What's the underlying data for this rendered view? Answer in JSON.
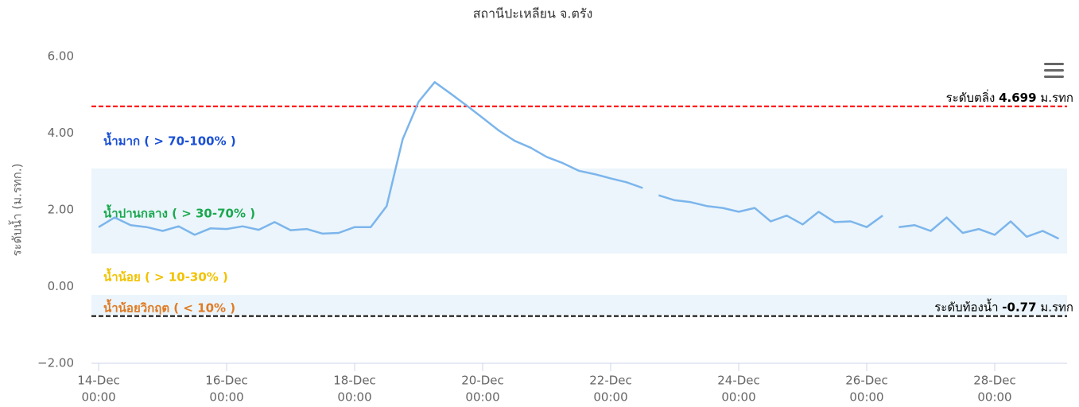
{
  "chart_data": {
    "type": "line",
    "title": "สถานีปะเหลียน จ.ตรัง",
    "y_label": "ระดับน้ำ (ม.รทก.)",
    "x": [
      "14-Dec 00:00",
      "14-Dec 06:00",
      "14-Dec 12:00",
      "14-Dec 18:00",
      "15-Dec 00:00",
      "15-Dec 06:00",
      "15-Dec 12:00",
      "15-Dec 18:00",
      "16-Dec 00:00",
      "16-Dec 06:00",
      "16-Dec 12:00",
      "16-Dec 18:00",
      "17-Dec 00:00",
      "17-Dec 06:00",
      "17-Dec 12:00",
      "17-Dec 18:00",
      "18-Dec 00:00",
      "18-Dec 06:00",
      "18-Dec 12:00",
      "18-Dec 18:00",
      "19-Dec 00:00",
      "19-Dec 06:00",
      "19-Dec 12:00",
      "19-Dec 18:00",
      "20-Dec 00:00",
      "20-Dec 06:00",
      "20-Dec 12:00",
      "20-Dec 18:00",
      "21-Dec 00:00",
      "21-Dec 06:00",
      "21-Dec 12:00",
      "21-Dec 18:00",
      "22-Dec 00:00",
      "22-Dec 06:00",
      "22-Dec 12:00",
      "22-Dec 15:00",
      "22-Dec 18:00",
      "23-Dec 00:00",
      "23-Dec 06:00",
      "23-Dec 12:00",
      "23-Dec 18:00",
      "24-Dec 00:00",
      "24-Dec 06:00",
      "24-Dec 12:00",
      "24-Dec 18:00",
      "25-Dec 00:00",
      "25-Dec 06:00",
      "25-Dec 12:00",
      "25-Dec 18:00",
      "26-Dec 00:00",
      "26-Dec 06:00",
      "26-Dec 09:00",
      "26-Dec 12:00",
      "26-Dec 18:00",
      "27-Dec 00:00",
      "27-Dec 06:00",
      "27-Dec 12:00",
      "27-Dec 18:00",
      "28-Dec 00:00",
      "28-Dec 06:00",
      "28-Dec 12:00",
      "28-Dec 18:00",
      "29-Dec 00:00"
    ],
    "series": [
      {
        "color": "#7cb5ec",
        "values": [
          1.55,
          1.8,
          1.6,
          1.55,
          1.45,
          1.57,
          1.35,
          1.52,
          1.5,
          1.57,
          1.48,
          1.68,
          1.47,
          1.5,
          1.38,
          1.4,
          1.55,
          1.55,
          2.1,
          3.84,
          4.82,
          5.33,
          5.03,
          4.72,
          4.4,
          4.07,
          3.8,
          3.62,
          3.38,
          3.22,
          3.02,
          2.93,
          2.82,
          2.72,
          2.57,
          null,
          2.38,
          2.25,
          2.2,
          2.1,
          2.05,
          1.95,
          2.05,
          1.7,
          1.85,
          1.62,
          1.95,
          1.68,
          1.7,
          1.55,
          1.85,
          null,
          1.55,
          1.6,
          1.45,
          1.8,
          1.4,
          1.5,
          1.35,
          1.7,
          1.3,
          1.45,
          1.25
        ]
      }
    ],
    "xlim": [
      "13-Dec 21:18",
      "29-Dec 03:08"
    ],
    "xticks": [
      {
        "day": "14-Dec",
        "time": "00:00"
      },
      {
        "day": "16-Dec",
        "time": "00:00"
      },
      {
        "day": "18-Dec",
        "time": "00:00"
      },
      {
        "day": "20-Dec",
        "time": "00:00"
      },
      {
        "day": "22-Dec",
        "time": "00:00"
      },
      {
        "day": "24-Dec",
        "time": "00:00"
      },
      {
        "day": "26-Dec",
        "time": "00:00"
      },
      {
        "day": "28-Dec",
        "time": "00:00"
      }
    ],
    "ylim": [
      -2,
      6
    ],
    "yticks": [
      {
        "value": -2,
        "label": "−2.00"
      },
      {
        "value": 0,
        "label": "0.00"
      },
      {
        "value": 2,
        "label": "2.00"
      },
      {
        "value": 4,
        "label": "4.00"
      },
      {
        "value": 6,
        "label": "6.00"
      }
    ],
    "grid": false,
    "plot_bands": [
      {
        "from": 0.86,
        "to": 3.08,
        "color": "#ebf5fb"
      },
      {
        "from": -0.74,
        "to": -0.22,
        "color": "#ebf5fb"
      }
    ],
    "plot_lines": [
      {
        "value": 4.699,
        "prefix": "ระดับตลิ่ง",
        "unit": "ม.รทก",
        "color": "#ff0000"
      },
      {
        "value": -0.77,
        "prefix": "ระดับท้องน้ำ",
        "unit": "ม.รทก",
        "color": "#000000"
      }
    ],
    "annotations": [
      {
        "text": "น้ำมาก ( > 70-100% )",
        "color": "#1a4fd6"
      },
      {
        "text": "น้ำปานกลาง ( > 30-70% )",
        "color": "#1aa84f"
      },
      {
        "text": "น้ำน้อย ( > 10-30% )",
        "color": "#f2c200"
      },
      {
        "text": "น้ำน้อยวิกฤต ( < 10% )",
        "color": "#e07b24"
      }
    ]
  }
}
